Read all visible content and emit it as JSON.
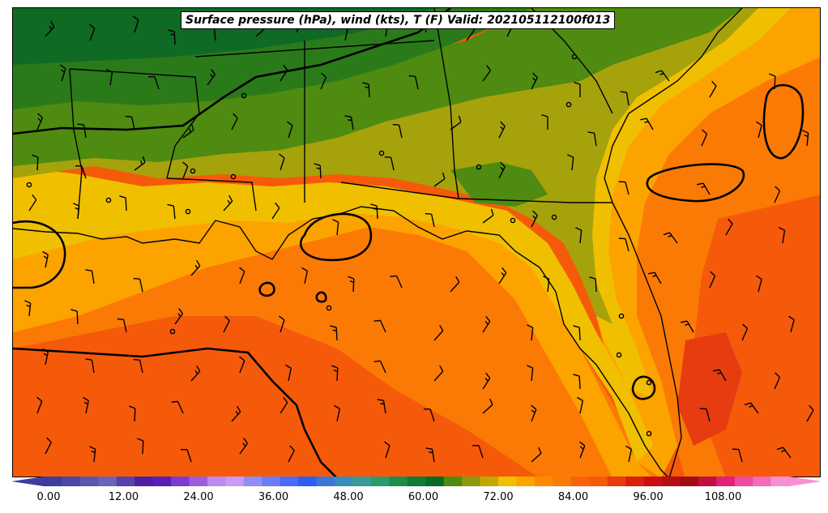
{
  "map": {
    "title": "Surface pressure (hPa), wind (kts), T (F) Valid: 202105112100f013",
    "colors": {
      "gulf_deep": "#f55a0a",
      "gulf_mid": "#fb7a05",
      "coastal_warm": "#fda300",
      "coastal_yellow": "#f0c000",
      "olive": "#a6a20c",
      "green_light": "#4e8b10",
      "green_mid": "#2b7a1a",
      "green_dark": "#0f6a23",
      "red_patch": "#e63c10",
      "border": "#000000"
    }
  },
  "colorbar": {
    "ticks": [
      "0.00",
      "12.00",
      "24.00",
      "36.00",
      "48.00",
      "60.00",
      "72.00",
      "84.00",
      "96.00",
      "108.00"
    ],
    "colors": [
      "#3d3d9e",
      "#4a48a8",
      "#5b57b0",
      "#6a64b8",
      "#5a3fae",
      "#4b1fa2",
      "#5a1fb6",
      "#7a3ccc",
      "#9b5ce0",
      "#b98af0",
      "#c79cf6",
      "#8f8ef8",
      "#6b7cf8",
      "#4a6cf6",
      "#2f5ef0",
      "#3a78d6",
      "#3a8cb8",
      "#3a9a98",
      "#2c9a6e",
      "#1e8c50",
      "#107a36",
      "#0a6a22",
      "#4e8b10",
      "#8a9a0a",
      "#c0a800",
      "#f0c000",
      "#fda300",
      "#fc8a00",
      "#fb7a05",
      "#f86208",
      "#f55a0a",
      "#e63c10",
      "#d82010",
      "#c81010",
      "#b40e14",
      "#a00c18",
      "#c01040",
      "#e0207a",
      "#f04aa0",
      "#f06cbc",
      "#f890d0"
    ]
  }
}
